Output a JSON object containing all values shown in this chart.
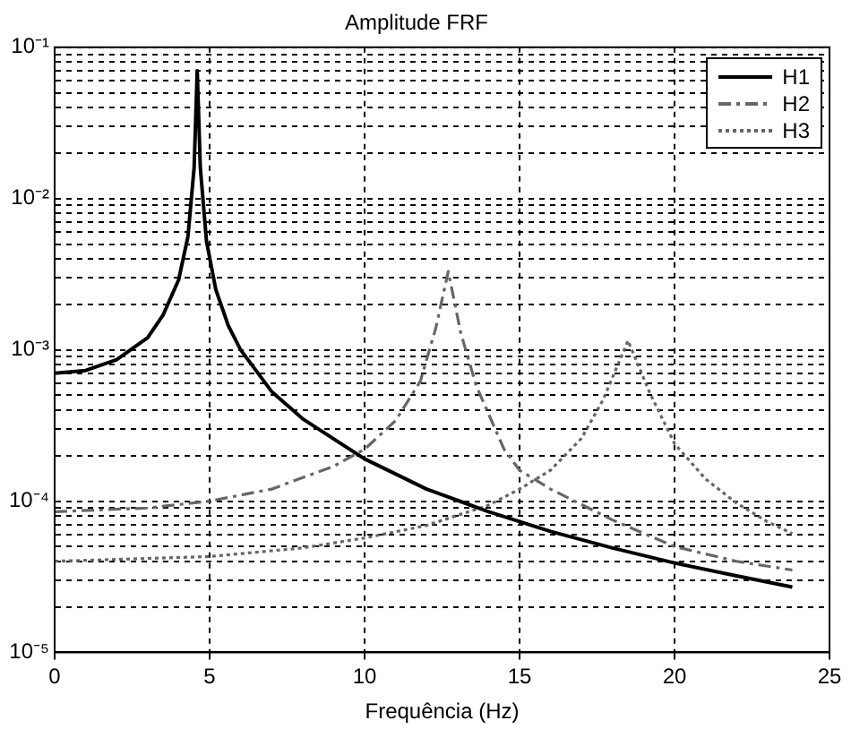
{
  "chart_data": {
    "type": "line",
    "title": "Amplitude FRF",
    "xlabel": "Frequência (Hz)",
    "xlim": [
      0,
      25
    ],
    "xticks": [
      0,
      5,
      10,
      15,
      20,
      25
    ],
    "ylim": [
      1e-05,
      0.1
    ],
    "log": "y",
    "grid": true,
    "legend": "top right",
    "marker": "none",
    "yticks": [
      {
        "value": 1e-05,
        "label": "10⁻⁵"
      },
      {
        "value": 2e-05,
        "label": null
      },
      {
        "value": 3e-05,
        "label": null
      },
      {
        "value": 4e-05,
        "label": null
      },
      {
        "value": 5e-05,
        "label": null
      },
      {
        "value": 6e-05,
        "label": null
      },
      {
        "value": 7e-05,
        "label": null
      },
      {
        "value": 8e-05,
        "label": null
      },
      {
        "value": 9e-05,
        "label": null
      },
      {
        "value": 0.0001,
        "label": "10⁻⁴"
      },
      {
        "value": 0.0002,
        "label": null
      },
      {
        "value": 0.0003,
        "label": null
      },
      {
        "value": 0.0004,
        "label": null
      },
      {
        "value": 0.0005,
        "label": null
      },
      {
        "value": 0.0006,
        "label": null
      },
      {
        "value": 0.0007,
        "label": null
      },
      {
        "value": 0.0008,
        "label": null
      },
      {
        "value": 0.0009,
        "label": null
      },
      {
        "value": 0.001,
        "label": "10⁻³"
      },
      {
        "value": 0.002,
        "label": null
      },
      {
        "value": 0.003,
        "label": null
      },
      {
        "value": 0.004,
        "label": null
      },
      {
        "value": 0.005,
        "label": null
      },
      {
        "value": 0.006,
        "label": null
      },
      {
        "value": 0.007,
        "label": null
      },
      {
        "value": 0.008,
        "label": null
      },
      {
        "value": 0.009,
        "label": null
      },
      {
        "value": 0.01,
        "label": "10⁻²"
      },
      {
        "value": 0.02,
        "label": null
      },
      {
        "value": 0.03,
        "label": null
      },
      {
        "value": 0.04,
        "label": null
      },
      {
        "value": 0.05,
        "label": null
      },
      {
        "value": 0.06,
        "label": null
      },
      {
        "value": 0.07,
        "label": null
      },
      {
        "value": 0.08,
        "label": null
      },
      {
        "value": 0.09,
        "label": null
      },
      {
        "value": 0.1,
        "label": "10⁻¹"
      }
    ],
    "series": [
      {
        "name": "H1",
        "color": "#000000",
        "line_style": "solid",
        "x": [
          0,
          1,
          2,
          3,
          3.5,
          4,
          4.3,
          4.5,
          4.6,
          4.7,
          4.9,
          5.2,
          5.6,
          6,
          7,
          8,
          10,
          12,
          14,
          16,
          18,
          20,
          22,
          23.8
        ],
        "values": [
          0.0007,
          0.00073,
          0.00086,
          0.0012,
          0.0017,
          0.0029,
          0.0056,
          0.016,
          0.07,
          0.016,
          0.0052,
          0.0025,
          0.00145,
          0.001,
          0.00053,
          0.00035,
          0.00019,
          0.00012,
          8.5e-05,
          6.3e-05,
          4.9e-05,
          3.9e-05,
          3.2e-05,
          2.7e-05
        ]
      },
      {
        "name": "H2",
        "color": "#666666",
        "line_style": "dashed",
        "x": [
          0,
          3,
          5,
          7,
          9,
          10,
          11,
          11.8,
          12.3,
          12.7,
          13.1,
          13.6,
          14.5,
          15,
          16,
          18,
          20,
          22,
          23.8
        ],
        "values": [
          8.5e-05,
          9e-05,
          0.0001,
          0.00012,
          0.00017,
          0.00022,
          0.00034,
          0.00062,
          0.0014,
          0.0033,
          0.0013,
          0.00058,
          0.00022,
          0.00016,
          0.00012,
          7.5e-05,
          5e-05,
          4e-05,
          3.5e-05
        ]
      },
      {
        "name": "H3",
        "color": "#666666",
        "line_style": "dotted",
        "x": [
          0,
          5,
          8,
          10,
          12,
          14,
          15,
          16,
          17,
          17.7,
          18.5,
          19.2,
          20,
          21,
          22,
          23,
          23.8
        ],
        "values": [
          4e-05,
          4.3e-05,
          4.9e-05,
          5.7e-05,
          6.9e-05,
          9.4e-05,
          0.00012,
          0.00016,
          0.00026,
          0.00047,
          0.00115,
          0.00052,
          0.00024,
          0.00014,
          9.7e-05,
          7.3e-05,
          6.1e-05
        ]
      }
    ]
  }
}
